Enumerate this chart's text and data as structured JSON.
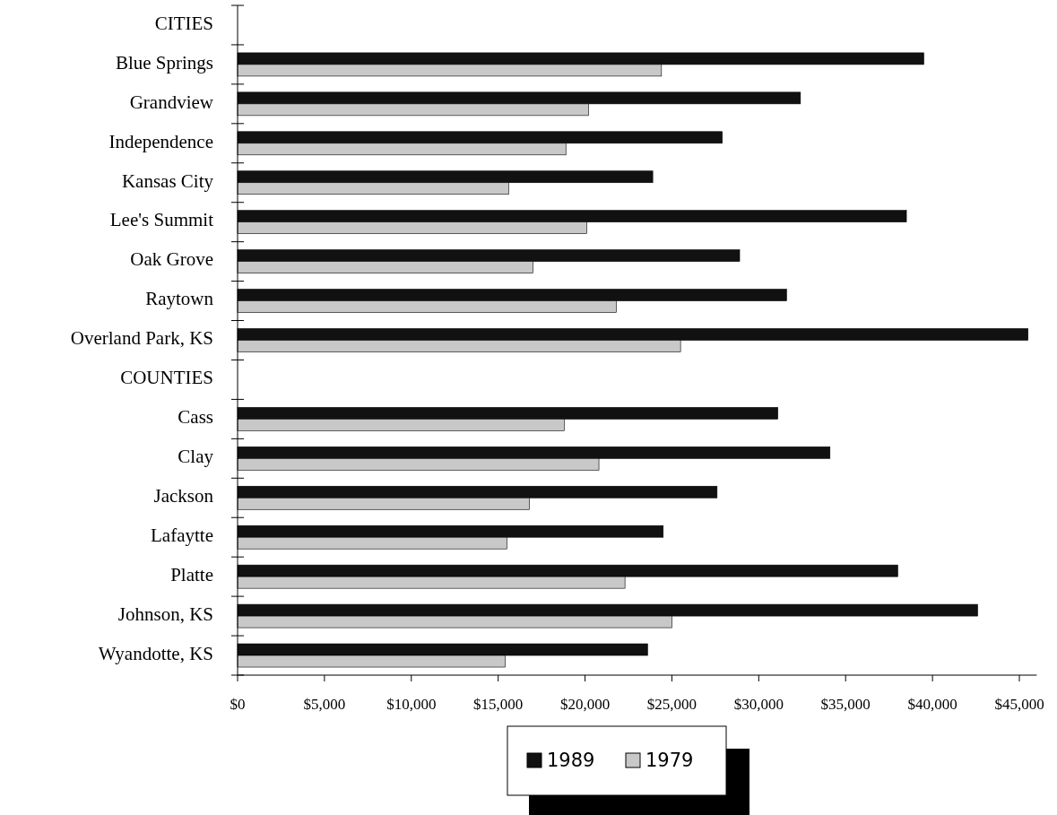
{
  "chart_data": {
    "type": "bar",
    "orientation": "horizontal",
    "categories": [
      "CITIES",
      "Blue Springs",
      "Grandview",
      "Independence",
      "Kansas  City",
      "Lee's Summit",
      "Oak Grove",
      "Raytown",
      "Overland Park, KS",
      "COUNTIES",
      "Cass",
      "Clay",
      "Jackson",
      "Lafaytte",
      "Platte",
      "Johnson, KS",
      "Wyandotte, KS"
    ],
    "series": [
      {
        "name": "1989",
        "color": "#111111",
        "values": [
          null,
          39500,
          32400,
          27900,
          23900,
          38500,
          28900,
          31600,
          45500,
          null,
          31100,
          34100,
          27600,
          24500,
          38000,
          42600,
          23600
        ]
      },
      {
        "name": "1979",
        "color": "#c8c8c8",
        "values": [
          null,
          24400,
          20200,
          18900,
          15600,
          20100,
          17000,
          21800,
          25500,
          null,
          18800,
          20800,
          16800,
          15500,
          22300,
          25000,
          15400
        ]
      }
    ],
    "xlim": [
      0,
      46000
    ],
    "xticks": [
      {
        "value": 0,
        "label": "$0"
      },
      {
        "value": 5000,
        "label": "$5,000"
      },
      {
        "value": 10000,
        "label": "$10,000"
      },
      {
        "value": 15000,
        "label": "$15,000"
      },
      {
        "value": 20000,
        "label": "$20,000"
      },
      {
        "value": 25000,
        "label": "$25,000"
      },
      {
        "value": 30000,
        "label": "$30,000"
      },
      {
        "value": 35000,
        "label": "$35,000"
      },
      {
        "value": 40000,
        "label": "$40,000"
      },
      {
        "value": 45000,
        "label": "$45,000"
      }
    ],
    "grid": false,
    "legend": "bottom"
  }
}
